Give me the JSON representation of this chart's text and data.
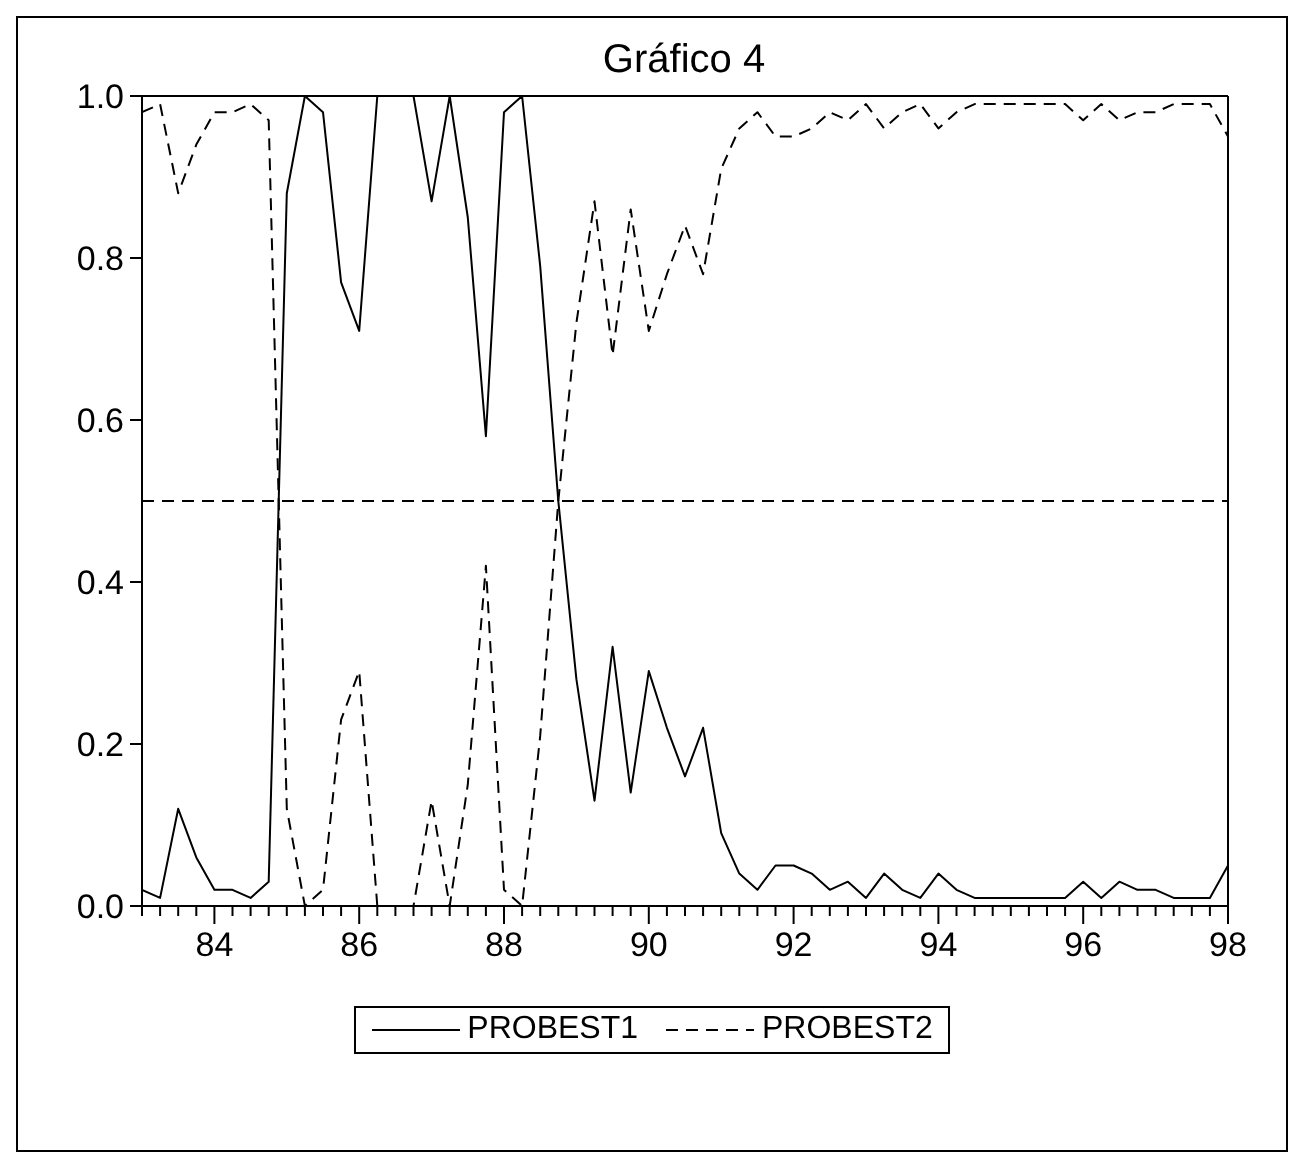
{
  "chart_data": {
    "type": "line",
    "title": "Gráfico 4",
    "x": [
      83,
      83.25,
      83.5,
      83.75,
      84,
      84.25,
      84.5,
      84.75,
      85,
      85.25,
      85.5,
      85.75,
      86,
      86.25,
      86.5,
      86.75,
      87,
      87.25,
      87.5,
      87.75,
      88,
      88.25,
      88.5,
      88.75,
      89,
      89.25,
      89.5,
      89.75,
      90,
      90.25,
      90.5,
      90.75,
      91,
      91.25,
      91.5,
      91.75,
      92,
      92.25,
      92.5,
      92.75,
      93,
      93.25,
      93.5,
      93.75,
      94,
      94.25,
      94.5,
      94.75,
      95,
      95.25,
      95.5,
      95.75,
      96,
      96.25,
      96.5,
      96.75,
      97,
      97.25,
      97.5,
      97.75,
      98
    ],
    "series": [
      {
        "name": "PROBEST1",
        "color": "#000000",
        "line_style": "solid",
        "values": [
          0.02,
          0.01,
          0.12,
          0.06,
          0.02,
          0.02,
          0.01,
          0.03,
          0.88,
          1.0,
          0.98,
          0.77,
          0.71,
          1.0,
          1.0,
          1.0,
          0.87,
          1.0,
          0.85,
          0.58,
          0.98,
          1.0,
          0.79,
          0.5,
          0.28,
          0.13,
          0.32,
          0.14,
          0.29,
          0.22,
          0.16,
          0.22,
          0.09,
          0.04,
          0.02,
          0.05,
          0.05,
          0.04,
          0.02,
          0.03,
          0.01,
          0.04,
          0.02,
          0.01,
          0.04,
          0.02,
          0.01,
          0.01,
          0.01,
          0.01,
          0.01,
          0.01,
          0.03,
          0.01,
          0.03,
          0.02,
          0.02,
          0.01,
          0.01,
          0.01,
          0.05
        ]
      },
      {
        "name": "PROBEST2",
        "color": "#000000",
        "line_style": "dashed",
        "values": [
          0.98,
          0.99,
          0.88,
          0.94,
          0.98,
          0.98,
          0.99,
          0.97,
          0.12,
          0.0,
          0.02,
          0.23,
          0.29,
          0.0,
          0.0,
          0.0,
          0.13,
          0.0,
          0.15,
          0.42,
          0.02,
          0.0,
          0.21,
          0.5,
          0.72,
          0.87,
          0.68,
          0.86,
          0.71,
          0.78,
          0.84,
          0.78,
          0.91,
          0.96,
          0.98,
          0.95,
          0.95,
          0.96,
          0.98,
          0.97,
          0.99,
          0.96,
          0.98,
          0.99,
          0.96,
          0.98,
          0.99,
          0.99,
          0.99,
          0.99,
          0.99,
          0.99,
          0.97,
          0.99,
          0.97,
          0.98,
          0.98,
          0.99,
          0.99,
          0.99,
          0.95
        ]
      }
    ],
    "xlim": [
      83,
      98
    ],
    "xticks": [
      {
        "value": 83,
        "label": null
      },
      {
        "value": 83.25,
        "label": null
      },
      {
        "value": 83.5,
        "label": null
      },
      {
        "value": 83.75,
        "label": null
      },
      84,
      {
        "value": 84.25,
        "label": null
      },
      {
        "value": 84.5,
        "label": null
      },
      {
        "value": 84.75,
        "label": null
      },
      {
        "value": 85,
        "label": null
      },
      {
        "value": 85.25,
        "label": null
      },
      {
        "value": 85.5,
        "label": null
      },
      {
        "value": 85.75,
        "label": null
      },
      86,
      {
        "value": 86.25,
        "label": null
      },
      {
        "value": 86.5,
        "label": null
      },
      {
        "value": 86.75,
        "label": null
      },
      {
        "value": 87,
        "label": null
      },
      {
        "value": 87.25,
        "label": null
      },
      {
        "value": 87.5,
        "label": null
      },
      {
        "value": 87.75,
        "label": null
      },
      88,
      {
        "value": 88.25,
        "label": null
      },
      {
        "value": 88.5,
        "label": null
      },
      {
        "value": 88.75,
        "label": null
      },
      {
        "value": 89,
        "label": null
      },
      {
        "value": 89.25,
        "label": null
      },
      {
        "value": 89.5,
        "label": null
      },
      {
        "value": 89.75,
        "label": null
      },
      90,
      {
        "value": 90.25,
        "label": null
      },
      {
        "value": 90.5,
        "label": null
      },
      {
        "value": 90.75,
        "label": null
      },
      {
        "value": 91,
        "label": null
      },
      {
        "value": 91.25,
        "label": null
      },
      {
        "value": 91.5,
        "label": null
      },
      {
        "value": 91.75,
        "label": null
      },
      92,
      {
        "value": 92.25,
        "label": null
      },
      {
        "value": 92.5,
        "label": null
      },
      {
        "value": 92.75,
        "label": null
      },
      {
        "value": 93,
        "label": null
      },
      {
        "value": 93.25,
        "label": null
      },
      {
        "value": 93.5,
        "label": null
      },
      {
        "value": 93.75,
        "label": null
      },
      94,
      {
        "value": 94.25,
        "label": null
      },
      {
        "value": 94.5,
        "label": null
      },
      {
        "value": 94.75,
        "label": null
      },
      {
        "value": 95,
        "label": null
      },
      {
        "value": 95.25,
        "label": null
      },
      {
        "value": 95.5,
        "label": null
      },
      {
        "value": 95.75,
        "label": null
      },
      96,
      {
        "value": 96.25,
        "label": null
      },
      {
        "value": 96.5,
        "label": null
      },
      {
        "value": 96.75,
        "label": null
      },
      {
        "value": 97,
        "label": null
      },
      {
        "value": 97.25,
        "label": null
      },
      {
        "value": 97.5,
        "label": null
      },
      {
        "value": 97.75,
        "label": null
      },
      98
    ],
    "ylim": [
      0,
      1
    ],
    "yticks": [
      {
        "value": 0,
        "label": "0.0"
      },
      {
        "value": 0.2,
        "label": "0.2"
      },
      {
        "value": 0.4,
        "label": "0.4"
      },
      {
        "value": 0.6,
        "label": "0.6"
      },
      {
        "value": 0.8,
        "label": "0.8"
      },
      {
        "value": 1,
        "label": "1.0"
      }
    ],
    "ref_lines": [
      {
        "axis": "y",
        "value": 0.5,
        "color": "#000000",
        "line_style": "dashed"
      }
    ],
    "legend": "bottom"
  }
}
